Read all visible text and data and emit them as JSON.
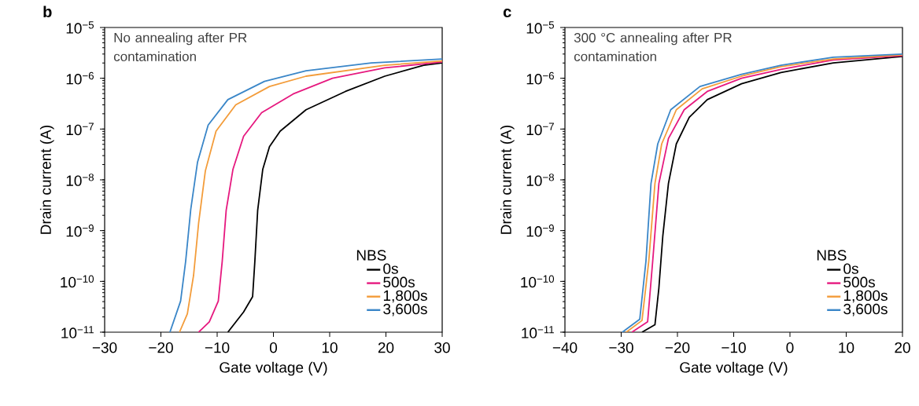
{
  "chart_data": [
    {
      "type": "line",
      "title": "b",
      "xlabel": "Gate voltage (V)",
      "ylabel": "Drain current (A)",
      "legend_title": "NBS",
      "legend": "bottom right",
      "log": "y",
      "annotations": [
        "No annealing after PR contamination"
      ],
      "xlim": [
        -30,
        30
      ],
      "xticks": [
        {
          "value": -30,
          "label": "−30"
        },
        {
          "value": -20,
          "label": "−20"
        },
        {
          "value": -10,
          "label": "−10"
        },
        0,
        10,
        20,
        30
      ],
      "ylim": [
        1e-11,
        1e-05
      ],
      "yticks": [
        {
          "value": 1e-11,
          "label": "10$^{−11}$"
        },
        {
          "value": 1e-10,
          "label": "10$^{−10}$"
        },
        {
          "value": 1e-09,
          "label": "10$^{−9}$"
        },
        {
          "value": 1e-08,
          "label": "10$^{−8}$"
        },
        {
          "value": 1e-07,
          "label": "10$^{−7}$"
        },
        {
          "value": 1e-06,
          "label": "10$^{−6}$"
        },
        {
          "value": 1e-05,
          "label": "10$^{−5}$"
        }
      ],
      "series": [
        {
          "name": "0s",
          "color": "#000000",
          "x": [
            -8.1,
            -5.3,
            -3.7,
            -3.3,
            -2.8,
            -1.9,
            -0.7,
            1.2,
            5.8,
            12.8,
            19.8,
            26.7,
            30
          ],
          "values": [
            1e-11,
            2.5e-11,
            5e-11,
            2.5e-10,
            2.5e-09,
            1.6e-08,
            4.5e-08,
            9.1e-08,
            2.4e-07,
            5.5e-07,
            1.1e-06,
            1.8e-06,
            2e-06
          ]
        },
        {
          "name": "500s",
          "color": "#e6197f",
          "x": [
            -13.3,
            -11.4,
            -9.8,
            -9.1,
            -8.4,
            -7.2,
            -5.3,
            -2.1,
            3.5,
            10.5,
            19.8,
            30
          ],
          "values": [
            1e-11,
            1.6e-11,
            4.1e-11,
            2.5e-10,
            2.5e-09,
            1.6e-08,
            7.2e-08,
            2.1e-07,
            4.9e-07,
            1e-06,
            1.6e-06,
            2.1e-06
          ]
        },
        {
          "name": "1,800s",
          "color": "#f39c3a",
          "x": [
            -16.7,
            -15.3,
            -14.2,
            -13.3,
            -12.1,
            -10.2,
            -6.7,
            -0.7,
            5.8,
            19.8,
            30
          ],
          "values": [
            1e-11,
            2.3e-11,
            1.3e-10,
            1.4e-09,
            1.5e-08,
            9.1e-08,
            3e-07,
            6.9e-07,
            1.1e-06,
            1.8e-06,
            2.2e-06
          ]
        },
        {
          "name": "3,600s",
          "color": "#3a86c8",
          "x": [
            -18.4,
            -16.5,
            -15.6,
            -14.7,
            -13.5,
            -11.6,
            -8.1,
            -1.6,
            5.8,
            17.4,
            30
          ],
          "values": [
            1e-11,
            4.1e-11,
            2.5e-10,
            2.6e-09,
            2.2e-08,
            1.2e-07,
            3.8e-07,
            8.7e-07,
            1.4e-06,
            2e-06,
            2.4e-06
          ]
        }
      ]
    },
    {
      "type": "line",
      "title": "c",
      "xlabel": "Gate voltage (V)",
      "ylabel": "Drain current (A)",
      "legend_title": "NBS",
      "legend": "bottom right",
      "log": "y",
      "annotations": [
        "300 °C  annealing after PR contamination"
      ],
      "xlim": [
        -40,
        20
      ],
      "xticks": [
        {
          "value": -40,
          "label": "−40"
        },
        {
          "value": -30,
          "label": "−30"
        },
        {
          "value": -20,
          "label": "−20"
        },
        {
          "value": -10,
          "label": "−10"
        },
        0,
        10,
        20
      ],
      "ylim": [
        1e-11,
        1e-05
      ],
      "yticks": [
        {
          "value": 1e-11,
          "label": "10$^{−11}$"
        },
        {
          "value": 1e-10,
          "label": "10$^{−10}$"
        },
        {
          "value": 1e-09,
          "label": "10$^{−9}$"
        },
        {
          "value": 1e-08,
          "label": "10$^{−8}$"
        },
        {
          "value": 1e-07,
          "label": "10$^{−7}$"
        },
        {
          "value": 1e-06,
          "label": "10$^{−6}$"
        },
        {
          "value": 1e-05,
          "label": "10$^{−5}$"
        }
      ],
      "series": [
        {
          "name": "0s",
          "color": "#000000",
          "x": [
            -26.3,
            -24.0,
            -23.3,
            -22.6,
            -21.6,
            -20.2,
            -17.9,
            -14.7,
            -8.6,
            -1.6,
            7.7,
            20
          ],
          "values": [
            1e-11,
            1.4e-11,
            7.4e-11,
            7.9e-10,
            8.5e-09,
            5.1e-08,
            1.7e-07,
            3.8e-07,
            7.8e-07,
            1.3e-06,
            2e-06,
            2.7e-06
          ]
        },
        {
          "name": "500s",
          "color": "#e6197f",
          "x": [
            -28.1,
            -25.3,
            -24.4,
            -23.3,
            -21.6,
            -18.8,
            -14.7,
            -8.6,
            -1.6,
            7.7,
            20
          ],
          "values": [
            1e-11,
            1.6e-11,
            2.5e-10,
            8.5e-09,
            6.5e-08,
            2.4e-07,
            5.5e-07,
            1e-06,
            1.5e-06,
            2.3e-06,
            2.8e-06
          ]
        },
        {
          "name": "1,800s",
          "color": "#f39c3a",
          "x": [
            -29.1,
            -26.3,
            -25.1,
            -24.0,
            -22.8,
            -20.2,
            -15.6,
            -8.6,
            -1.6,
            7.7,
            20
          ],
          "values": [
            1e-11,
            1.7e-11,
            2.5e-10,
            8.5e-09,
            5.1e-08,
            2.4e-07,
            6.2e-07,
            1.1e-06,
            1.7e-06,
            2.4e-06,
            2.9e-06
          ]
        },
        {
          "name": "3,600s",
          "color": "#3a86c8",
          "x": [
            -29.8,
            -26.7,
            -25.6,
            -24.7,
            -23.5,
            -21.2,
            -16.0,
            -8.6,
            -1.6,
            7.7,
            20
          ],
          "values": [
            1e-11,
            1.8e-11,
            2.5e-10,
            8.5e-09,
            5.1e-08,
            2.4e-07,
            6.9e-07,
            1.2e-06,
            1.8e-06,
            2.6e-06,
            3e-06
          ]
        }
      ]
    }
  ]
}
